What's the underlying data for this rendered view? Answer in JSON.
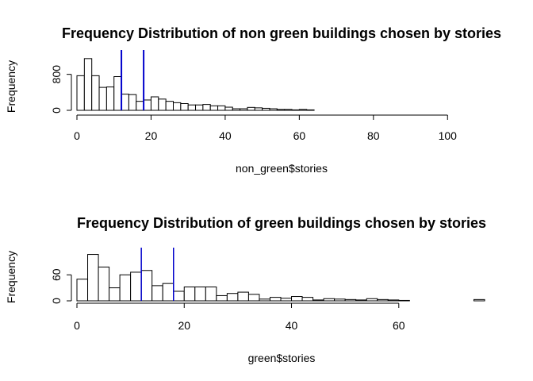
{
  "chart_data": [
    {
      "type": "histogram",
      "title": "Frequency Distribution of non green buildings chosen by stories",
      "xlabel": "non_green$stories",
      "ylabel": "Frequency",
      "xlim": [
        0,
        110
      ],
      "ylim": [
        0,
        1200
      ],
      "x_ticks": [
        0,
        20,
        40,
        60,
        80,
        100
      ],
      "x_tick_labels": [
        "0",
        "20",
        "40",
        "60",
        "80",
        "100"
      ],
      "y_ticks": [
        0,
        800
      ],
      "y_tick_labels": [
        "0",
        "800"
      ],
      "bin_width": 2,
      "bins_start": 0,
      "counts": [
        770,
        1150,
        770,
        510,
        520,
        750,
        360,
        350,
        200,
        230,
        300,
        250,
        200,
        170,
        150,
        120,
        120,
        130,
        100,
        100,
        70,
        35,
        35,
        65,
        55,
        45,
        35,
        20,
        20,
        10,
        20,
        10,
        0,
        0,
        0,
        0,
        0,
        0,
        0,
        0,
        0,
        0,
        0,
        0,
        0,
        0,
        0,
        0,
        0,
        0,
        0,
        0,
        0,
        0,
        0
      ],
      "vlines": [
        {
          "x": 12,
          "color": "#0000cc"
        },
        {
          "x": 18,
          "color": "#0000cc"
        }
      ]
    },
    {
      "type": "histogram",
      "title": "Frequency Distribution of green buildings chosen by stories",
      "xlabel": "green$stories",
      "ylabel": "Frequency",
      "xlim": [
        0,
        76
      ],
      "ylim": [
        0,
        108
      ],
      "x_ticks": [
        0,
        20,
        40,
        60
      ],
      "x_tick_labels": [
        "0",
        "20",
        "40",
        "60"
      ],
      "y_ticks": [
        0,
        60
      ],
      "y_tick_labels": [
        "0",
        "60"
      ],
      "bin_width": 2,
      "bins_start": 0,
      "counts": [
        50,
        107,
        78,
        30,
        60,
        66,
        70,
        35,
        40,
        22,
        32,
        32,
        32,
        12,
        17,
        20,
        15,
        4,
        8,
        6,
        10,
        8,
        2,
        5,
        4,
        3,
        2,
        5,
        3,
        2,
        1,
        0,
        0,
        0,
        0,
        0,
        0,
        3
      ],
      "vlines": [
        {
          "x": 12,
          "color": "#0000cc"
        },
        {
          "x": 18,
          "color": "#0000cc"
        }
      ]
    }
  ]
}
